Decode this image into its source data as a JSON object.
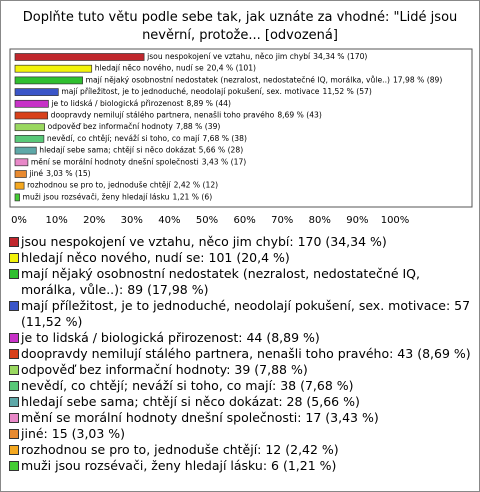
{
  "chart_data": {
    "type": "bar",
    "orientation": "horizontal",
    "title": "Doplňte tuto větu podle sebe tak, jak uznáte za vhodné: \"Lidé jsou nevěrní, protože... [odvozená]",
    "categories": [
      "jsou nespokojení ve vztahu, něco jim chybí",
      "hledají něco nového, nudí se",
      "mají nějaký osobnostní nedostatek (nezralost, nedostatečné IQ, morálka, vůle..)",
      "mají příležitost, je to jednoduché, neodolají pokušení, sex. motivace",
      "je to lidská / biologická přirozenost",
      "doopravdy nemilují stálého partnera, nenašli toho pravého",
      "odpověď bez informační hodnoty",
      "nevědí, co chtějí; neváží si toho, co mají",
      "hledají sebe sama; chtějí si něco dokázat",
      "mění se morální hodnoty dnešní společnosti",
      "jiné",
      "rozhodnou se pro to, jednoduše chtějí",
      "muži jsou rozsévači, ženy hledají lásku"
    ],
    "values": [
      34.34,
      20.4,
      17.98,
      11.52,
      8.89,
      8.69,
      7.88,
      7.68,
      5.66,
      3.43,
      3.03,
      2.42,
      1.21
    ],
    "value_labels": [
      "34,34 % (170)",
      "20,4 % (101)",
      "17,98 % (89)",
      "11,52 % (57)",
      "8,89 % (44)",
      "8,69 % (43)",
      "7,88 % (39)",
      "7,68 % (38)",
      "5,66 % (28)",
      "3,43 % (17)",
      "3,03 % (15)",
      "2,42 % (12)",
      "1,21 % (6)"
    ],
    "legend": [
      "jsou nespokojení ve vztahu, něco jim chybí: 170 (34,34 %)",
      "hledají něco nového, nudí se: 101 (20,4 %)",
      "mají nějaký osobnostní nedostatek (nezralost, nedostatečné IQ, morálka, vůle..): 89 (17,98 %)",
      "mají příležitost, je to jednoduché, neodolají pokušení, sex. motivace: 57 (11,52 %)",
      "je to lidská / biologická přirozenost: 44 (8,89 %)",
      "doopravdy nemilují stálého partnera, nenašli toho pravého: 43 (8,69 %)",
      "odpověď bez informační hodnoty: 39 (7,88 %)",
      "nevědí, co chtějí; neváží si toho, co mají: 38 (7,68 %)",
      "hledají sebe sama; chtějí si něco dokázat: 28 (5,66 %)",
      "mění se morální hodnoty dnešní společnosti: 17 (3,43 %)",
      "jiné: 15 (3,03 %)",
      "rozhodnou se pro to, jednoduše chtějí: 12 (2,42 %)",
      "muži jsou rozsévači, ženy hledají lásku: 6 (1,21 %)"
    ],
    "colors": [
      "#c0272d",
      "#f2f20a",
      "#2fbf2f",
      "#3a55c8",
      "#c832c8",
      "#d8401a",
      "#9ad860",
      "#58c878",
      "#5ea8a8",
      "#e888c8",
      "#e88a30",
      "#f4a820",
      "#44cc33"
    ],
    "xlim": [
      0,
      100
    ],
    "xticks": [
      {
        "value": 0,
        "label": "0%"
      },
      {
        "value": 10,
        "label": "10%"
      },
      {
        "value": 20,
        "label": "20%"
      },
      {
        "value": 30,
        "label": "30%"
      },
      {
        "value": 40,
        "label": "40%"
      },
      {
        "value": 50,
        "label": "50%"
      },
      {
        "value": 60,
        "label": "60%"
      },
      {
        "value": 70,
        "label": "70%"
      },
      {
        "value": 80,
        "label": "80%"
      },
      {
        "value": 90,
        "label": "90%"
      },
      {
        "value": 100,
        "label": "100%"
      }
    ],
    "grid": false
  }
}
